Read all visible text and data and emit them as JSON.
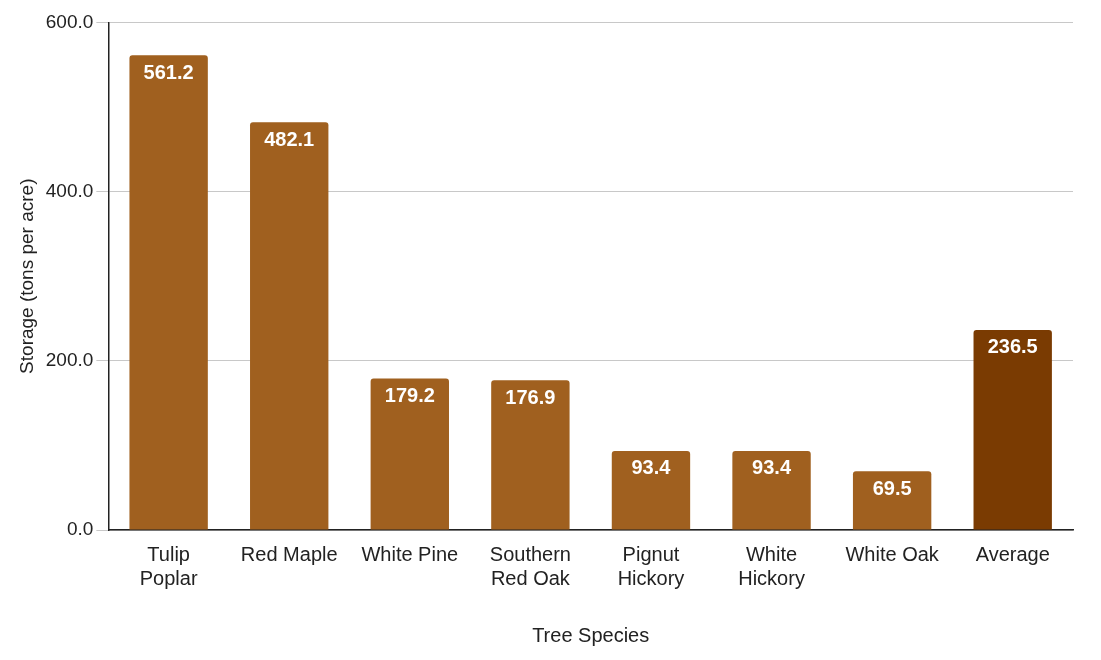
{
  "chart_data": {
    "type": "bar",
    "xlabel": "Tree Species",
    "ylabel": "Storage (tons per acre)",
    "categories": [
      "Tulip Poplar",
      "Red Maple",
      "White Pine",
      "Southern Red Oak",
      "Pignut Hickory",
      "White Hickory",
      "White Oak",
      "Average"
    ],
    "values": [
      561.2,
      482.1,
      179.2,
      176.9,
      93.4,
      93.4,
      69.5,
      236.5
    ],
    "colors": [
      "#a0601f",
      "#a0601f",
      "#a0601f",
      "#a0601f",
      "#a0601f",
      "#a0601f",
      "#a0601f",
      "#7a3b02"
    ],
    "ylim": [
      0,
      600
    ],
    "yticks": [
      {
        "value": 0,
        "label": "0.0"
      },
      {
        "value": 200,
        "label": "200.0"
      },
      {
        "value": 400,
        "label": "400.0"
      },
      {
        "value": 600,
        "label": "600.0"
      }
    ],
    "grid": "y",
    "legend": false,
    "data_labels": true
  }
}
